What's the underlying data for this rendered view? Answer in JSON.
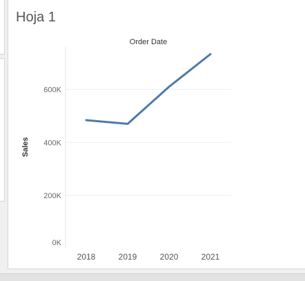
{
  "sheet": {
    "title": "Hoja 1"
  },
  "chart_data": {
    "type": "line",
    "title": "Order Date",
    "xlabel": "",
    "ylabel": "Sales",
    "categories": [
      "2018",
      "2019",
      "2020",
      "2021"
    ],
    "series": [
      {
        "values": [
          484000,
          470000,
          610000,
          733000
        ]
      }
    ],
    "ylim": [
      0,
      760000
    ],
    "yticks": [
      0,
      200000,
      400000,
      600000
    ],
    "ytick_labels": [
      "0K",
      "200K",
      "400K",
      "600K"
    ],
    "grid": true,
    "line_color": "#4e79a7"
  }
}
